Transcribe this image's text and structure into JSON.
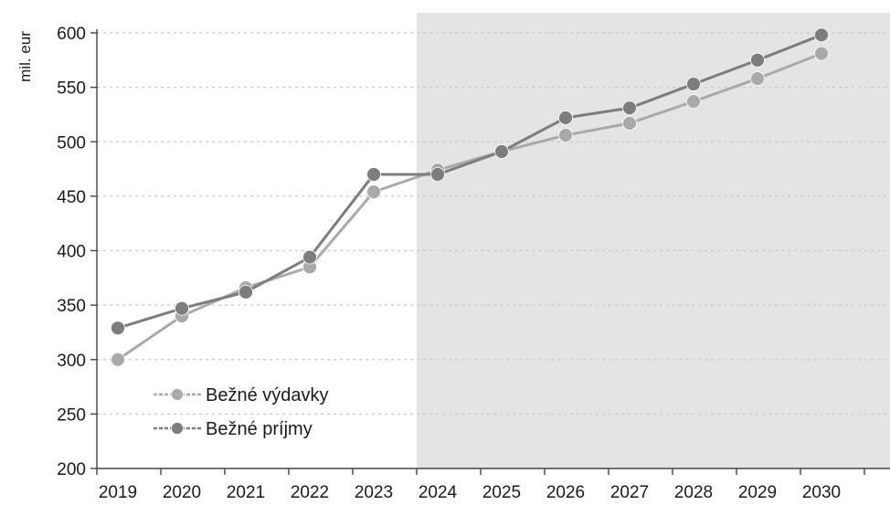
{
  "chart_data": {
    "type": "line",
    "ylabel": "mil. eur",
    "xlabel": "",
    "title": "",
    "ylim": [
      200,
      600
    ],
    "yticks": [
      200,
      250,
      300,
      350,
      400,
      450,
      500,
      550,
      600
    ],
    "categories": [
      "2019",
      "2020",
      "2021",
      "2022",
      "2023",
      "2024",
      "2025",
      "2026",
      "2027",
      "2028",
      "2029",
      "2030"
    ],
    "forecast_shading_from": "2024",
    "grid": true,
    "legend_position": "bottom-left",
    "series": [
      {
        "name": "Bežné výdavky",
        "color": "#a9a9a9",
        "values": [
          300,
          340,
          366,
          385,
          454,
          474,
          491,
          506,
          517,
          537,
          558,
          581
        ]
      },
      {
        "name": "Bežné príjmy",
        "color": "#7d7d7d",
        "values": [
          329,
          347,
          362,
          394,
          470,
          470,
          491,
          522,
          531,
          553,
          575,
          598
        ]
      }
    ],
    "shading_color": "#e4e4e4",
    "axis_color": "#444444",
    "grid_color": "#c8c8c8"
  }
}
